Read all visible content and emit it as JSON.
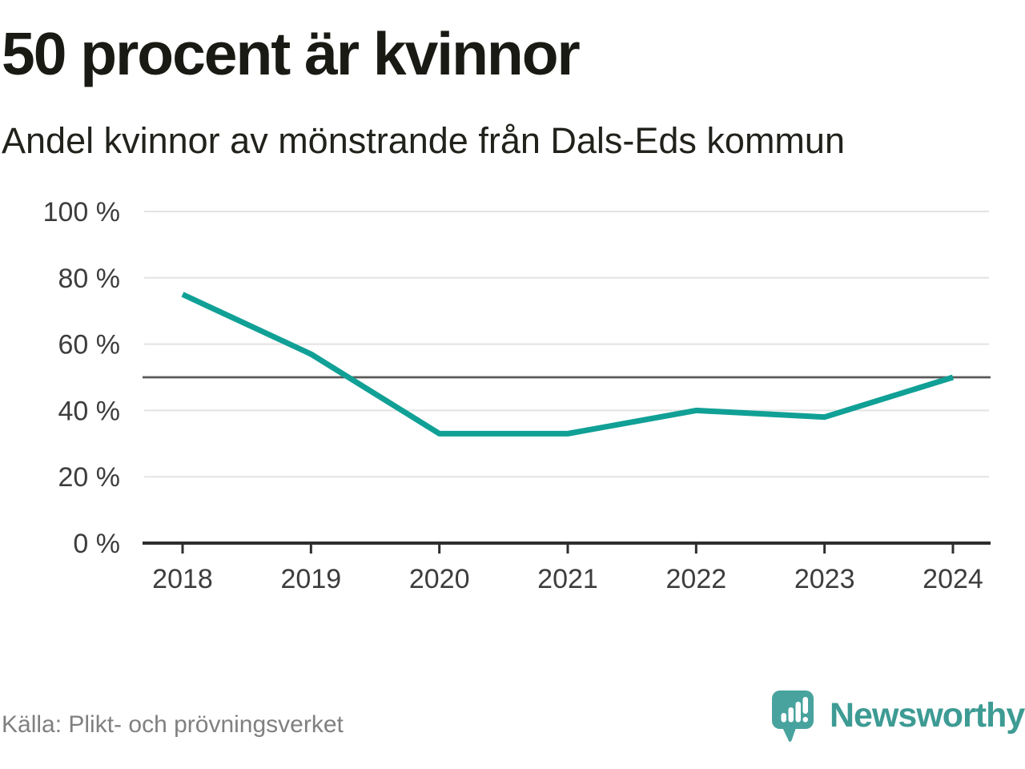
{
  "header": {
    "title": "50 procent är kvinnor",
    "subtitle": "Andel kvinnor av mönstrande från Dals-Eds kommun"
  },
  "footer": {
    "source": "Källa: Plikt- och prövningsverket",
    "brand": "Newsworthy"
  },
  "colors": {
    "accent_teal": "#10a096",
    "reference_line_gray": "#595959",
    "grid_gray": "#e3e3e3",
    "axis_dark": "#2e2e2e",
    "axis_label_gray": "#3d3d3d",
    "brand_mark_teal": "#48a39e",
    "brand_text_teal": "#3d9b94"
  },
  "chart_data": {
    "type": "line",
    "title": "50 procent är kvinnor",
    "subtitle": "Andel kvinnor av mönstrande från Dals-Eds kommun",
    "x": [
      2018,
      2019,
      2020,
      2021,
      2022,
      2023,
      2024
    ],
    "series": [
      {
        "name": "Andel kvinnor av mönstrande",
        "color": "#10a096",
        "values": [
          75,
          57,
          33,
          33,
          40,
          38,
          50
        ]
      }
    ],
    "reference_line": {
      "value": 50,
      "color": "#595959"
    },
    "ylim": [
      0,
      100
    ],
    "yticks": [
      0,
      20,
      40,
      60,
      80,
      100
    ],
    "ytick_suffix": " %",
    "xtick_labels": [
      "2018",
      "2019",
      "2020",
      "2021",
      "2022",
      "2023",
      "2024"
    ],
    "grid": true,
    "legend": "none"
  }
}
